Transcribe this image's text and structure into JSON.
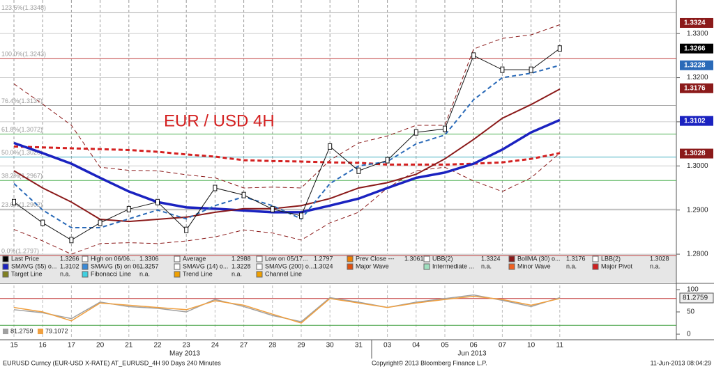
{
  "chart_data": [
    {
      "type": "line",
      "title": "EUR / USD 4H",
      "categories": [
        "15",
        "16",
        "17",
        "20",
        "21",
        "22",
        "23",
        "24",
        "27",
        "28",
        "29",
        "30",
        "31",
        "03",
        "04",
        "05",
        "06",
        "07",
        "10",
        "11"
      ],
      "months": [
        "May 2013",
        "Jun 2013"
      ],
      "ylim": [
        1.2737,
        1.3376
      ],
      "yticks": [
        {
          "value": 1.28,
          "label": "1.2800"
        },
        {
          "value": 1.29,
          "label": "1.2900"
        },
        {
          "value": 1.3,
          "label": "1.3000"
        },
        {
          "value": 1.31,
          "label": "1.3100"
        },
        {
          "value": 1.32,
          "label": "1.3200"
        },
        {
          "value": 1.33,
          "label": "1.3300"
        }
      ],
      "grid": true,
      "series": [
        {
          "color": "#8b1a1a",
          "dash": true,
          "width": 1,
          "values": [
            1.3186,
            1.314,
            1.3092,
            1.2997,
            1.299,
            1.2989,
            1.298,
            1.2973,
            1.295,
            1.2952,
            1.295,
            1.3013,
            1.3052,
            1.3068,
            1.3092,
            1.3092,
            1.3265,
            1.3289,
            1.3297,
            1.332
          ]
        },
        {
          "color": "#8b1a1a",
          "dash": true,
          "width": 1,
          "values": [
            1.2856,
            1.283,
            1.28,
            1.2824,
            1.2826,
            1.2824,
            1.283,
            1.2839,
            1.2855,
            1.2848,
            1.2832,
            1.2871,
            1.2895,
            1.295,
            1.2989,
            1.2997,
            1.2966,
            1.2942,
            1.2973,
            1.3029
          ]
        },
        {
          "color": "#d42020",
          "dash": true,
          "width": 3,
          "values": [
            1.3044,
            1.3042,
            1.304,
            1.3038,
            1.3036,
            1.3032,
            1.3026,
            1.3021,
            1.3013,
            1.3011,
            1.301,
            1.3008,
            1.3007,
            1.3003,
            1.3003,
            1.3003,
            1.3005,
            1.3008,
            1.3016,
            1.3029
          ]
        },
        {
          "color": "#1a22c0",
          "dash": false,
          "width": 3.5,
          "values": [
            1.3052,
            1.3029,
            1.3005,
            1.2973,
            1.2942,
            1.2918,
            1.2906,
            1.2903,
            1.2899,
            1.2895,
            1.2895,
            1.291,
            1.2926,
            1.295,
            1.2973,
            1.2985,
            1.3005,
            1.3037,
            1.3076,
            1.3104
          ]
        },
        {
          "color": "#8b1a1a",
          "dash": false,
          "width": 2,
          "values": [
            1.2989,
            1.295,
            1.2918,
            1.2879,
            1.2874,
            1.2879,
            1.2884,
            1.2895,
            1.2903,
            1.2903,
            1.291,
            1.2926,
            1.295,
            1.2962,
            1.2981,
            1.3016,
            1.306,
            1.3108,
            1.3139,
            1.3174
          ]
        },
        {
          "color": "#2a6ab8",
          "dash": true,
          "width": 2,
          "values": [
            1.296,
            1.29,
            1.286,
            1.286,
            1.288,
            1.29,
            1.288,
            1.291,
            1.293,
            1.291,
            1.288,
            1.296,
            1.3,
            1.301,
            1.305,
            1.307,
            1.315,
            1.32,
            1.321,
            1.3228
          ]
        },
        {
          "color": "#111111",
          "dash": false,
          "width": 1,
          "values": [
            1.2918,
            1.2871,
            1.2832,
            1.2871,
            1.2902,
            1.2918,
            1.2855,
            1.295,
            1.2934,
            1.2902,
            1.2887,
            1.3044,
            1.2989,
            1.3013,
            1.3076,
            1.3084,
            1.325,
            1.3218,
            1.3218,
            1.3266
          ]
        }
      ],
      "fib_levels": [
        {
          "value": 1.3348,
          "label": "123.6%(1.3348)",
          "color": "#aaaaaa"
        },
        {
          "value": 1.3243,
          "label": "100.0%(1.3243)",
          "color": "#c04040"
        },
        {
          "value": 1.3137,
          "label": "76.4%(1.3137)",
          "color": "#aaaaaa"
        },
        {
          "value": 1.3072,
          "label": "61.8%(1.3072)",
          "color": "#4caf50"
        },
        {
          "value": 1.302,
          "label": "50.0%(1.3020)",
          "color": "#40b0c0"
        },
        {
          "value": 1.2967,
          "label": "38.2%(1.2967)",
          "color": "#4caf50"
        },
        {
          "value": 1.2902,
          "label": "23.6%(1.2902)",
          "color": "#aaaaaa"
        },
        {
          "value": 1.2797,
          "label": "0.0%(1.2797)",
          "color": "#c04040"
        }
      ],
      "price_tags": [
        {
          "value": 1.3324,
          "label": "1.3324",
          "color": "#8b1a1a"
        },
        {
          "value": 1.3266,
          "label": "1.3266",
          "color": "#000000"
        },
        {
          "value": 1.3228,
          "label": "1.3228",
          "color": "#2a6ab8"
        },
        {
          "value": 1.3176,
          "label": "1.3176",
          "color": "#8b1a1a"
        },
        {
          "value": 1.3102,
          "label": "1.3102",
          "color": "#1a22c0"
        },
        {
          "value": 1.3028,
          "label": "1.3028",
          "color": "#8b1a1a"
        }
      ],
      "legend_items": [
        [
          {
            "name": "Last Price",
            "value": "1.3266",
            "color": "#000000"
          },
          {
            "name": "High on 06/06...",
            "value": "1.3306",
            "color": "#ffffff"
          },
          {
            "name": "Average",
            "value": "1.2988",
            "color": "#ffffff"
          },
          {
            "name": "Low on 05/17...",
            "value": "1.2797",
            "color": "#ffffff"
          },
          {
            "name": "Prev Close ---",
            "value": "1.3061",
            "color": "#f08000"
          },
          {
            "name": "UBB(2)",
            "value": "1.3324",
            "color": "#ffffff"
          },
          {
            "name": "BollMA (30) o...",
            "value": "1.3176",
            "color": "#8b1a1a"
          },
          {
            "name": "LBB(2)",
            "value": "1.3028",
            "color": "#ffffff"
          }
        ],
        [
          {
            "name": "SMAVG (55) o...",
            "value": "1.3102",
            "color": "#1a22c0"
          },
          {
            "name": "SMAVG (5) on 06...",
            "value": "1.3257",
            "color": "#3a8ad8"
          },
          {
            "name": "SMAVG (14) o...",
            "value": "1.3228",
            "color": "#ffffff"
          },
          {
            "name": "SMAVG (200) o...",
            "value": "1.3024",
            "color": "#ffffff"
          },
          {
            "name": "Major Wave",
            "color": "#e05010"
          },
          {
            "name": "Intermediate ...",
            "value": "n.a.",
            "color": "#a0e0c0"
          },
          {
            "name": "Minor Wave",
            "value": "n.a.",
            "color": "#f06020"
          },
          {
            "name": "Major Pivot",
            "value": "n.a.",
            "color": "#d02020"
          }
        ],
        [
          {
            "name": "Target Line",
            "value": "n.a.",
            "color": "#808020"
          },
          {
            "name": "Fibonacci Line",
            "value": "n.a.",
            "color": "#40d0e0"
          },
          {
            "name": "Trend Line",
            "value": "n.a.",
            "color": "#f0a000"
          },
          {
            "name": "Channel Line",
            "color": "#f0a000"
          }
        ]
      ]
    },
    {
      "type": "line",
      "ylim": [
        -12.5,
        109.4
      ],
      "yticks": [
        0,
        50,
        100
      ],
      "ref_lines": [
        {
          "value": 80,
          "color": "#c03030"
        },
        {
          "value": 20,
          "color": "#40a040"
        }
      ],
      "series": [
        {
          "name": "81.2759",
          "color": "#a0a0a0",
          "values": [
            55,
            48,
            35,
            72,
            62,
            58,
            50,
            78,
            62,
            42,
            28,
            82,
            72,
            60,
            72,
            80,
            88,
            76,
            62,
            82
          ]
        },
        {
          "name": "79.1072",
          "color": "#f0a040",
          "values": [
            60,
            50,
            30,
            70,
            65,
            60,
            55,
            75,
            65,
            45,
            25,
            80,
            70,
            60,
            70,
            78,
            85,
            78,
            65,
            80
          ]
        }
      ],
      "tag": {
        "value": 81.2759,
        "label": "81.2759"
      }
    }
  ],
  "footer": {
    "left": "EURUSD Curncy (EUR-USD X-RATE) AT_EURUSD_4H 90 Days 240 Minutes",
    "center": "Copyright© 2013 Bloomberg Finance L.P.",
    "right": "11-Jun-2013 08:04:29"
  }
}
